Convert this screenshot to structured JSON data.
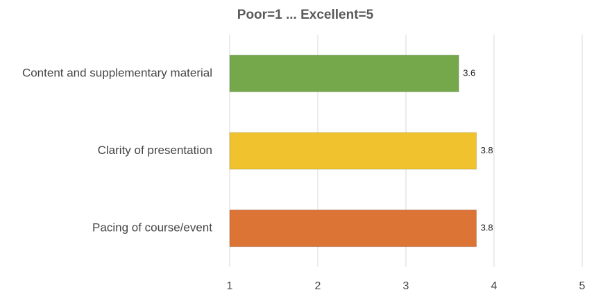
{
  "chart_data": {
    "type": "bar",
    "orientation": "horizontal",
    "title": "Poor=1 ... Excellent=5",
    "categories": [
      "Content and supplementary material",
      "Clarity of presentation",
      "Pacing of course/event"
    ],
    "values": [
      3.6,
      3.8,
      3.8
    ],
    "colors": [
      "#74a84a",
      "#efc22e",
      "#dc7436"
    ],
    "xlim": [
      1,
      5
    ],
    "xticks": [
      1,
      2,
      3,
      4,
      5
    ],
    "grid": true
  }
}
